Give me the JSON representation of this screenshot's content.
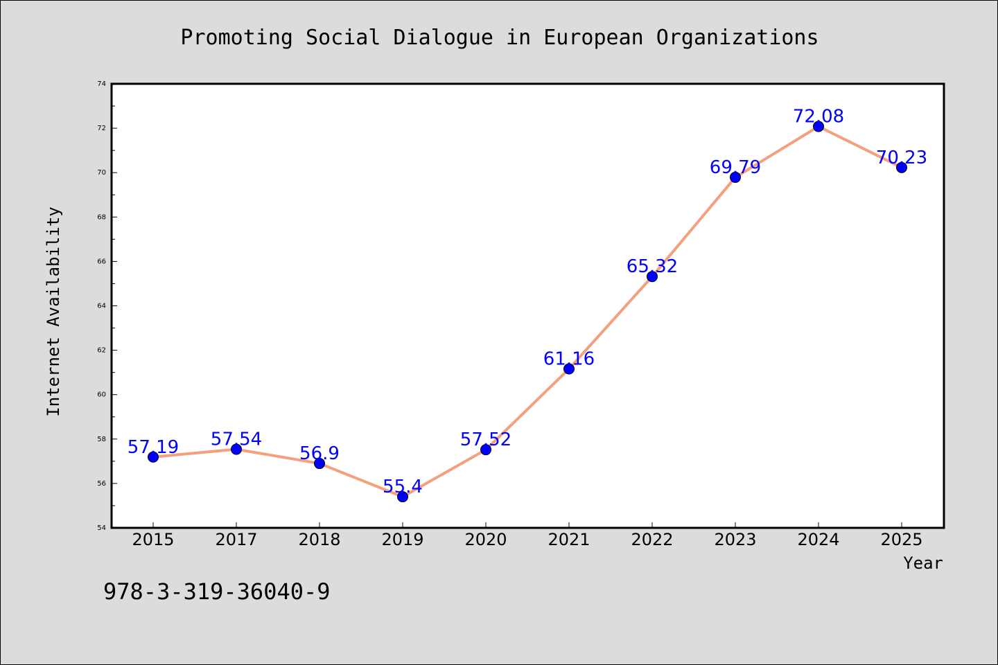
{
  "chart_data": {
    "type": "line",
    "title": "Promoting Social Dialogue in European Organizations",
    "xlabel": "Year",
    "ylabel": "Internet Availability",
    "categories": [
      "2015",
      "2017",
      "2018",
      "2019",
      "2020",
      "2021",
      "2022",
      "2023",
      "2024",
      "2025"
    ],
    "series": [
      {
        "values": [
          57.19,
          57.54,
          56.9,
          55.4,
          57.52,
          61.16,
          65.32,
          69.79,
          72.08,
          70.23
        ],
        "data_labels": [
          "57.19",
          "57.54",
          "56.9",
          "55.4",
          "57.52",
          "61.16",
          "65.32",
          "69.79",
          "72.08",
          "70.23"
        ],
        "line_color": "#f4a07f",
        "marker_color": "#0000ff"
      }
    ],
    "ylim": [
      54,
      74
    ],
    "yticks": [
      54,
      56,
      58,
      60,
      62,
      64,
      66,
      68,
      70,
      72,
      74
    ],
    "grid": false,
    "legend": "none",
    "label_color": "#0000ff",
    "background_color": "#dcdcdc",
    "plot_background_color": "#ffffff"
  },
  "annotation": "978-3-319-36040-9"
}
